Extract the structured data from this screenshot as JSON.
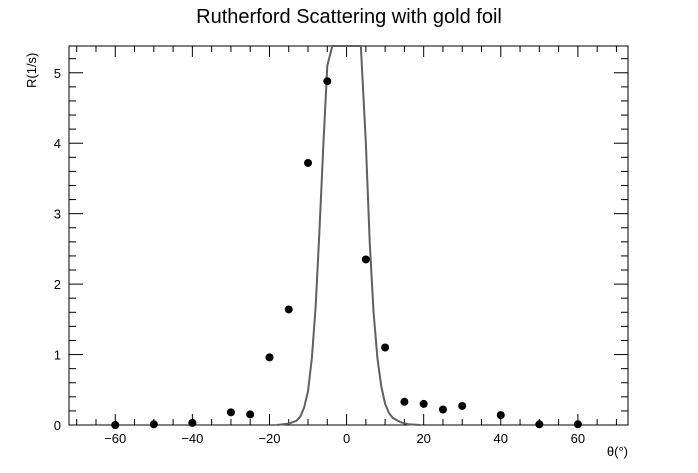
{
  "chart_data": {
    "type": "scatter",
    "title": "Rutherford Scattering with gold foil",
    "xlabel": "θ(°)",
    "ylabel": "R(1/s)",
    "xlim": [
      -72,
      73
    ],
    "ylim": [
      0,
      5.38
    ],
    "x_ticks": [
      -60,
      -40,
      -20,
      0,
      20,
      40,
      60
    ],
    "x_tick_labels": [
      "−60",
      "−40",
      "−20",
      "0",
      "20",
      "40",
      "60"
    ],
    "y_ticks": [
      0,
      1,
      2,
      3,
      4,
      5
    ],
    "y_tick_labels": [
      "0",
      "1",
      "2",
      "3",
      "4",
      "5"
    ],
    "grid": false,
    "legend": "none",
    "series": [
      {
        "type": "scatter",
        "color": "#000000",
        "points": [
          {
            "x": -60,
            "y": 0.0
          },
          {
            "x": -50,
            "y": 0.01
          },
          {
            "x": -40,
            "y": 0.03
          },
          {
            "x": -30,
            "y": 0.18
          },
          {
            "x": -25,
            "y": 0.15
          },
          {
            "x": -20,
            "y": 0.96
          },
          {
            "x": -15,
            "y": 1.64
          },
          {
            "x": -10,
            "y": 3.72
          },
          {
            "x": -5,
            "y": 4.88
          },
          {
            "x": 5,
            "y": 2.35
          },
          {
            "x": 10,
            "y": 1.1
          },
          {
            "x": 15,
            "y": 0.33
          },
          {
            "x": 20,
            "y": 0.3
          },
          {
            "x": 25,
            "y": 0.22
          },
          {
            "x": 30,
            "y": 0.27
          },
          {
            "x": 40,
            "y": 0.14
          },
          {
            "x": 50,
            "y": 0.01
          },
          {
            "x": 60,
            "y": 0.01
          }
        ]
      },
      {
        "type": "line",
        "color": "#606060",
        "points": [
          {
            "x": -18,
            "y": 0.0
          },
          {
            "x": -15,
            "y": 0.02
          },
          {
            "x": -13,
            "y": 0.06
          },
          {
            "x": -12,
            "y": 0.12
          },
          {
            "x": -11,
            "y": 0.25
          },
          {
            "x": -10,
            "y": 0.48
          },
          {
            "x": -9,
            "y": 0.95
          },
          {
            "x": -8,
            "y": 1.7
          },
          {
            "x": -7,
            "y": 2.8
          },
          {
            "x": -6,
            "y": 4.0
          },
          {
            "x": -5,
            "y": 5.1
          },
          {
            "x": -3.7,
            "y": 5.38
          },
          {
            "x": 3.7,
            "y": 5.38
          },
          {
            "x": 5,
            "y": 4.0
          },
          {
            "x": 6,
            "y": 2.6
          },
          {
            "x": 7,
            "y": 1.6
          },
          {
            "x": 8,
            "y": 0.95
          },
          {
            "x": 9,
            "y": 0.55
          },
          {
            "x": 10,
            "y": 0.3
          },
          {
            "x": 11,
            "y": 0.17
          },
          {
            "x": 12,
            "y": 0.1
          },
          {
            "x": 14,
            "y": 0.04
          },
          {
            "x": 16,
            "y": 0.01
          },
          {
            "x": 19,
            "y": 0.0
          }
        ]
      }
    ]
  }
}
